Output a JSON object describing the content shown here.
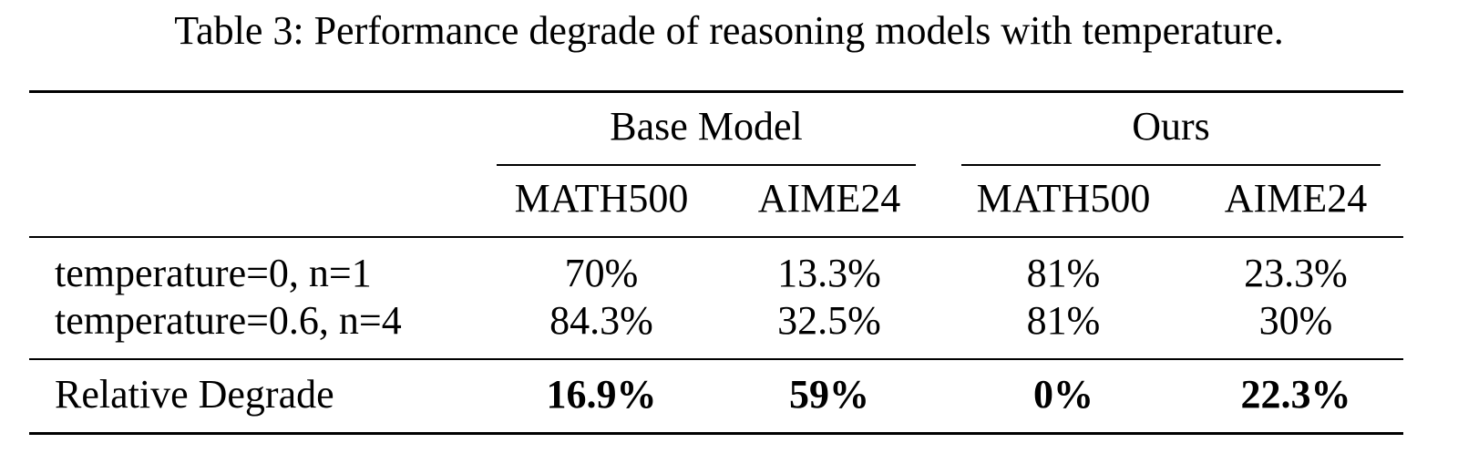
{
  "caption": "Table 3: Performance degrade of reasoning models with temperature.",
  "table": {
    "groups": [
      "Base Model",
      "Ours"
    ],
    "columns": [
      "MATH500",
      "AIME24",
      "MATH500",
      "AIME24"
    ],
    "rows": [
      {
        "label": "temperature=0, n=1",
        "values": [
          "70%",
          "13.3%",
          "81%",
          "23.3%"
        ]
      },
      {
        "label": "temperature=0.6, n=4",
        "values": [
          "84.3%",
          "32.5%",
          "81%",
          "30%"
        ]
      }
    ],
    "summary": {
      "label": "Relative Degrade",
      "values": [
        "16.9%",
        "59%",
        "0%",
        "22.3%"
      ]
    }
  }
}
